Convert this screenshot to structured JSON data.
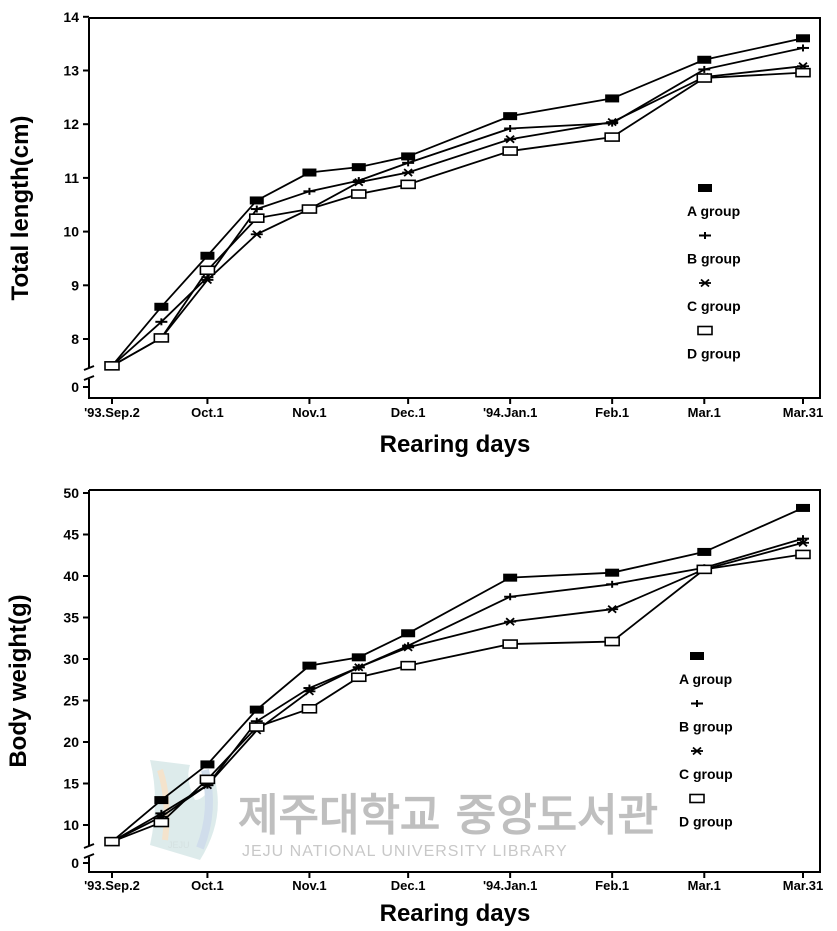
{
  "chart_data": [
    {
      "type": "line",
      "ylabel": "Total length(cm)",
      "xlabel": "Rearing days",
      "x_tick_labels": [
        "'93.Sep.2",
        "Oct.1",
        "Nov.1",
        "Dec.1",
        "'94.Jan.1",
        "Feb.1",
        "Mar.1",
        "Mar.31"
      ],
      "x_tick_day": [
        0,
        29,
        60,
        90,
        121,
        152,
        180,
        210
      ],
      "y_ticks": [
        0,
        8,
        9,
        10,
        11,
        12,
        13,
        14
      ],
      "ylim": [
        7.5,
        14
      ],
      "axis_break": true,
      "x": [
        0,
        15,
        29,
        44,
        60,
        75,
        90,
        121,
        152,
        180,
        210
      ],
      "series": [
        {
          "name": "A group",
          "marker": "filled-rect",
          "values": [
            7.5,
            8.6,
            9.55,
            10.58,
            11.1,
            11.2,
            11.4,
            12.15,
            12.48,
            13.2,
            13.6
          ]
        },
        {
          "name": "B group",
          "marker": "plus",
          "values": [
            7.5,
            8.32,
            9.15,
            10.42,
            10.75,
            10.95,
            11.28,
            11.92,
            12.02,
            13.02,
            13.42
          ]
        },
        {
          "name": "C group",
          "marker": "star",
          "values": [
            7.5,
            8.02,
            9.1,
            9.95,
            10.42,
            10.92,
            11.1,
            11.72,
            12.04,
            12.88,
            13.08
          ]
        },
        {
          "name": "D group",
          "marker": "open-rect",
          "values": [
            7.5,
            8.02,
            9.28,
            10.25,
            10.42,
            10.7,
            10.88,
            11.5,
            11.76,
            12.86,
            12.96
          ]
        }
      ],
      "legend_position": "right"
    },
    {
      "type": "line",
      "ylabel": "Body weight(g)",
      "xlabel": "Rearing days",
      "x_tick_labels": [
        "'93.Sep.2",
        "Oct.1",
        "Nov.1",
        "Dec.1",
        "'94.Jan.1",
        "Feb.1",
        "Mar.1",
        "Mar.31"
      ],
      "x_tick_day": [
        0,
        29,
        60,
        90,
        121,
        152,
        180,
        210
      ],
      "y_ticks": [
        0,
        10,
        15,
        20,
        25,
        30,
        35,
        40,
        45,
        50
      ],
      "ylim": [
        8,
        50
      ],
      "axis_break": true,
      "x": [
        0,
        15,
        29,
        44,
        60,
        75,
        90,
        121,
        152,
        180,
        210
      ],
      "series": [
        {
          "name": "A group",
          "marker": "filled-rect",
          "values": [
            8,
            13,
            17.3,
            23.9,
            29.2,
            30.2,
            33.1,
            39.8,
            40.4,
            42.9,
            48.2
          ]
        },
        {
          "name": "B group",
          "marker": "plus",
          "values": [
            8,
            11.4,
            14.8,
            22.5,
            26.5,
            29,
            31.6,
            37.5,
            39,
            41,
            44.5
          ]
        },
        {
          "name": "C group",
          "marker": "star",
          "values": [
            8,
            11,
            14.8,
            21.4,
            26.1,
            29,
            31.4,
            34.5,
            36,
            40.8,
            44
          ]
        },
        {
          "name": "D group",
          "marker": "open-rect",
          "values": [
            8,
            10.3,
            15.5,
            21.8,
            24,
            27.8,
            29.2,
            31.8,
            32.1,
            40.8,
            42.6
          ]
        }
      ],
      "legend_position": "right"
    }
  ],
  "watermark": {
    "korean": "제주대학교 중앙도서관",
    "english": "JEJU NATIONAL UNIVERSITY LIBRARY",
    "logo_text": "JEJU"
  }
}
